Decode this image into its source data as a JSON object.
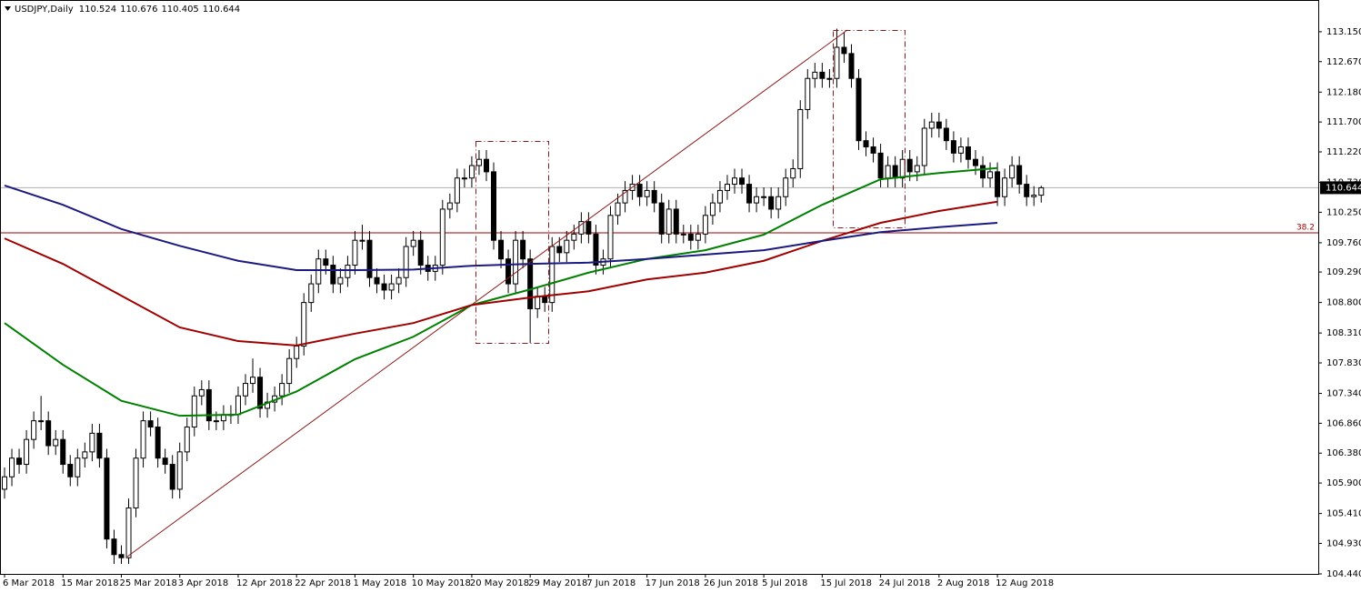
{
  "chart_data": {
    "type": "candlestick",
    "symbol": "USDJPY,Daily",
    "categories": [
      "6 Mar 2018",
      null,
      null,
      null,
      null,
      null,
      null,
      null,
      "15 Mar 2018",
      null,
      null,
      null,
      null,
      null,
      null,
      null,
      "25 Mar 2018",
      null,
      null,
      null,
      null,
      null,
      null,
      null,
      "3 Apr 2018",
      null,
      null,
      null,
      null,
      null,
      null,
      null,
      "12 Apr 2018",
      null,
      null,
      null,
      null,
      null,
      null,
      null,
      "22 Apr 2018",
      null,
      null,
      null,
      null,
      null,
      null,
      null,
      "1 May 2018",
      null,
      null,
      null,
      null,
      null,
      null,
      null,
      "10 May 2018",
      null,
      null,
      null,
      null,
      null,
      null,
      null,
      "20 May 2018",
      null,
      null,
      null,
      null,
      null,
      null,
      null,
      "29 May 2018",
      null,
      null,
      null,
      null,
      null,
      null,
      null,
      "7 Jun 2018",
      null,
      null,
      null,
      null,
      null,
      null,
      null,
      "17 Jun 2018",
      null,
      null,
      null,
      null,
      null,
      null,
      null,
      "26 Jun 2018",
      null,
      null,
      null,
      null,
      null,
      null,
      null,
      "5 Jul 2018",
      null,
      null,
      null,
      null,
      null,
      null,
      null,
      "15 Jul 2018",
      null,
      null,
      null,
      null,
      null,
      null,
      null,
      "24 Jul 2018",
      null,
      null,
      null,
      null,
      null,
      null,
      null,
      "2 Aug 2018",
      null,
      null,
      null,
      null,
      null,
      null,
      null,
      "12 Aug 2018",
      null,
      null,
      null,
      null,
      null,
      null
    ],
    "open": [
      105.8,
      106.0,
      106.3,
      106.2,
      106.6,
      106.9,
      106.9,
      106.5,
      106.6,
      106.2,
      106.0,
      106.3,
      106.4,
      106.7,
      106.3,
      105.0,
      104.75,
      104.7,
      105.5,
      106.3,
      106.9,
      106.8,
      106.3,
      106.2,
      105.8,
      106.4,
      106.8,
      107.3,
      107.4,
      106.9,
      106.9,
      107.0,
      107.0,
      107.3,
      107.5,
      107.6,
      107.1,
      107.2,
      107.3,
      107.5,
      107.9,
      108.1,
      108.8,
      109.1,
      109.5,
      109.4,
      109.1,
      109.2,
      109.4,
      109.8,
      109.8,
      109.2,
      109.1,
      109.0,
      109.1,
      109.2,
      109.7,
      109.8,
      109.4,
      109.3,
      109.4,
      110.3,
      110.4,
      110.8,
      110.8,
      111.0,
      111.1,
      110.9,
      109.8,
      109.5,
      109.1,
      109.8,
      109.5,
      108.7,
      108.9,
      108.8,
      109.7,
      109.6,
      109.8,
      109.9,
      110.1,
      109.9,
      109.4,
      109.5,
      110.2,
      110.4,
      110.6,
      110.7,
      110.5,
      110.6,
      110.4,
      109.9,
      110.3,
      109.9,
      109.9,
      109.8,
      109.9,
      110.2,
      110.4,
      110.6,
      110.7,
      110.8,
      110.7,
      110.4,
      110.5,
      110.5,
      110.3,
      110.5,
      110.8,
      110.95,
      111.9,
      112.4,
      112.5,
      112.4,
      112.4,
      112.9,
      112.8,
      112.4,
      111.4,
      111.3,
      111.2,
      110.8,
      111.0,
      110.8,
      111.1,
      110.9,
      111.0,
      111.6,
      111.7,
      111.6,
      111.4,
      111.2,
      111.3,
      111.1,
      111.0,
      110.8,
      110.9,
      110.5,
      110.8,
      111.0,
      110.7,
      110.5,
      110.524
    ],
    "high": [
      106.15,
      106.45,
      106.45,
      106.75,
      107.05,
      107.3,
      107.05,
      106.75,
      106.75,
      106.35,
      106.45,
      106.55,
      106.85,
      106.85,
      106.45,
      105.15,
      104.9,
      105.65,
      106.45,
      107.05,
      107.05,
      106.95,
      106.45,
      106.35,
      106.55,
      106.95,
      107.45,
      107.55,
      107.55,
      107.05,
      107.15,
      107.15,
      107.45,
      107.65,
      107.9,
      107.75,
      107.35,
      107.45,
      107.65,
      108.05,
      108.25,
      108.95,
      109.25,
      109.65,
      109.65,
      109.55,
      109.35,
      109.55,
      109.95,
      110.05,
      109.95,
      109.35,
      109.25,
      109.25,
      109.35,
      109.85,
      109.95,
      109.95,
      109.55,
      109.55,
      110.45,
      110.55,
      110.95,
      110.95,
      111.15,
      111.25,
      111.25,
      111.05,
      109.95,
      109.65,
      109.95,
      109.95,
      109.65,
      109.05,
      109.05,
      109.85,
      109.85,
      109.95,
      110.05,
      110.25,
      110.25,
      110.05,
      109.65,
      110.35,
      110.55,
      110.75,
      110.85,
      110.85,
      110.75,
      110.75,
      110.55,
      110.45,
      110.45,
      110.05,
      110.05,
      110.05,
      110.35,
      110.55,
      110.75,
      110.85,
      110.95,
      110.95,
      110.85,
      110.65,
      110.65,
      110.65,
      110.65,
      110.95,
      111.1,
      112.05,
      112.55,
      112.65,
      112.65,
      112.55,
      113.2,
      113.15,
      112.95,
      112.55,
      111.55,
      111.45,
      111.35,
      111.15,
      111.15,
      111.25,
      111.25,
      111.15,
      111.75,
      111.85,
      111.85,
      111.75,
      111.55,
      111.45,
      111.45,
      111.25,
      111.15,
      111.05,
      111.05,
      110.95,
      111.15,
      111.15,
      110.85,
      110.67,
      110.676
    ],
    "low": [
      105.65,
      105.85,
      106.05,
      106.05,
      106.45,
      106.75,
      106.35,
      106.35,
      106.05,
      105.85,
      105.85,
      106.15,
      106.25,
      106.15,
      104.85,
      104.6,
      104.6,
      104.6,
      105.35,
      106.15,
      106.65,
      106.15,
      106.05,
      105.65,
      105.65,
      106.25,
      106.65,
      107.15,
      106.75,
      106.75,
      106.75,
      106.85,
      106.85,
      107.15,
      107.35,
      106.95,
      106.95,
      107.05,
      107.15,
      107.35,
      107.75,
      107.95,
      108.65,
      108.95,
      109.25,
      108.95,
      108.95,
      109.05,
      109.25,
      109.65,
      109.05,
      108.95,
      108.85,
      108.85,
      108.95,
      109.05,
      109.55,
      109.25,
      109.15,
      109.15,
      109.25,
      110.15,
      110.25,
      110.65,
      110.65,
      110.85,
      110.75,
      109.65,
      109.35,
      108.95,
      108.95,
      109.35,
      108.15,
      108.55,
      108.65,
      108.65,
      109.45,
      109.45,
      109.65,
      109.75,
      109.75,
      109.25,
      109.25,
      109.35,
      110.05,
      110.25,
      110.45,
      110.35,
      110.35,
      110.25,
      109.75,
      109.75,
      109.75,
      109.75,
      109.65,
      109.65,
      109.75,
      110.05,
      110.25,
      110.45,
      110.55,
      110.55,
      110.25,
      110.25,
      110.35,
      110.15,
      110.15,
      110.35,
      110.65,
      110.8,
      111.75,
      112.25,
      112.25,
      112.25,
      112.25,
      112.65,
      112.25,
      111.25,
      111.15,
      111.05,
      110.65,
      110.65,
      110.65,
      110.65,
      110.75,
      110.75,
      110.85,
      111.45,
      111.45,
      111.25,
      111.05,
      111.05,
      110.95,
      110.85,
      110.65,
      110.65,
      110.35,
      110.35,
      110.65,
      110.55,
      110.35,
      110.35,
      110.405
    ],
    "close": [
      106.0,
      106.3,
      106.2,
      106.6,
      106.9,
      106.9,
      106.5,
      106.6,
      106.2,
      106.0,
      106.3,
      106.4,
      106.7,
      106.3,
      105.0,
      104.75,
      104.7,
      105.5,
      106.3,
      106.9,
      106.8,
      106.3,
      106.2,
      105.8,
      106.4,
      106.8,
      107.3,
      107.4,
      106.9,
      106.9,
      107.0,
      107.0,
      107.3,
      107.5,
      107.6,
      107.1,
      107.2,
      107.3,
      107.5,
      107.9,
      108.1,
      108.8,
      109.1,
      109.5,
      109.4,
      109.1,
      109.2,
      109.4,
      109.8,
      109.8,
      109.2,
      109.1,
      109.0,
      109.1,
      109.2,
      109.7,
      109.8,
      109.4,
      109.3,
      109.4,
      110.3,
      110.4,
      110.8,
      110.8,
      111.0,
      111.1,
      110.9,
      109.8,
      109.5,
      109.1,
      109.8,
      109.5,
      108.7,
      108.9,
      108.8,
      109.7,
      109.6,
      109.8,
      109.9,
      110.1,
      109.9,
      109.4,
      109.5,
      110.2,
      110.4,
      110.6,
      110.7,
      110.5,
      110.6,
      110.4,
      109.9,
      110.3,
      109.9,
      109.9,
      109.8,
      109.9,
      110.2,
      110.4,
      110.6,
      110.7,
      110.8,
      110.7,
      110.4,
      110.5,
      110.5,
      110.3,
      110.5,
      110.8,
      110.95,
      111.9,
      112.4,
      112.5,
      112.4,
      112.4,
      112.9,
      112.8,
      112.4,
      111.4,
      111.3,
      111.2,
      110.8,
      111.0,
      110.8,
      111.1,
      110.9,
      111.0,
      111.6,
      111.7,
      111.6,
      111.4,
      111.2,
      111.3,
      111.1,
      111.0,
      110.8,
      110.9,
      110.5,
      110.8,
      111.0,
      110.7,
      110.5,
      110.524,
      110.644
    ],
    "bull_color": "#ffffff",
    "bear_color": "#000000",
    "series": [
      {
        "color": "#008000",
        "x": [
          "6 Mar 2018",
          "15 Mar 2018",
          "25 Mar 2018",
          "3 Apr 2018",
          "12 Apr 2018",
          "22 Apr 2018",
          "1 May 2018",
          "10 May 2018",
          "20 May 2018",
          "29 May 2018",
          "7 Jun 2018",
          "17 Jun 2018",
          "26 Jun 2018",
          "5 Jul 2018",
          "15 Jul 2018",
          "24 Jul 2018",
          "2 Aug 2018",
          "12 Aug 2018"
        ],
        "values": [
          108.47,
          107.8,
          107.22,
          106.98,
          107.0,
          107.37,
          107.89,
          108.25,
          108.76,
          109.01,
          109.28,
          109.5,
          109.64,
          109.89,
          110.37,
          110.78,
          110.88,
          110.96
        ]
      },
      {
        "color": "#a00000",
        "x": [
          "6 Mar 2018",
          "15 Mar 2018",
          "25 Mar 2018",
          "3 Apr 2018",
          "12 Apr 2018",
          "22 Apr 2018",
          "1 May 2018",
          "10 May 2018",
          "20 May 2018",
          "29 May 2018",
          "7 Jun 2018",
          "17 Jun 2018",
          "26 Jun 2018",
          "5 Jul 2018",
          "15 Jul 2018",
          "24 Jul 2018",
          "2 Aug 2018",
          "12 Aug 2018"
        ],
        "values": [
          109.83,
          109.42,
          108.91,
          108.4,
          108.18,
          108.11,
          108.3,
          108.47,
          108.76,
          108.88,
          108.98,
          109.17,
          109.28,
          109.47,
          109.79,
          110.08,
          110.27,
          110.42
        ]
      },
      {
        "color": "#1a1a80",
        "x": [
          "6 Mar 2018",
          "15 Mar 2018",
          "25 Mar 2018",
          "3 Apr 2018",
          "12 Apr 2018",
          "22 Apr 2018",
          "1 May 2018",
          "10 May 2018",
          "20 May 2018",
          "29 May 2018",
          "7 Jun 2018",
          "17 Jun 2018",
          "26 Jun 2018",
          "5 Jul 2018",
          "15 Jul 2018",
          "24 Jul 2018",
          "2 Aug 2018",
          "12 Aug 2018"
        ],
        "values": [
          110.68,
          110.37,
          109.98,
          109.71,
          109.47,
          109.32,
          109.32,
          109.33,
          109.39,
          109.42,
          109.44,
          109.5,
          109.57,
          109.64,
          109.79,
          109.93,
          110.01,
          110.08
        ]
      }
    ],
    "fib_level": {
      "label": "38.2",
      "price": 109.92,
      "color": "#a00000"
    },
    "ylim": [
      104.44,
      113.66
    ],
    "yticks": [
      {
        "value": 104.44,
        "label": "104.440"
      },
      {
        "value": 104.93,
        "label": "104.930"
      },
      {
        "value": 105.41,
        "label": "105.410"
      },
      {
        "value": 105.9,
        "label": "105.900"
      },
      {
        "value": 106.38,
        "label": "106.380"
      },
      {
        "value": 106.86,
        "label": "106.860"
      },
      {
        "value": 107.34,
        "label": "107.340"
      },
      {
        "value": 107.83,
        "label": "107.830"
      },
      {
        "value": 108.31,
        "label": "108.310"
      },
      {
        "value": 108.8,
        "label": "108.800"
      },
      {
        "value": 109.29,
        "label": "109.290"
      },
      {
        "value": 109.76,
        "label": "109.760"
      },
      {
        "value": 110.25,
        "label": "110.250"
      },
      {
        "value": 110.73,
        "label": "110.730"
      },
      {
        "value": 111.22,
        "label": "111.220"
      },
      {
        "value": 111.7,
        "label": "111.700"
      },
      {
        "value": 112.18,
        "label": "112.180"
      },
      {
        "value": 112.67,
        "label": "112.670"
      },
      {
        "value": 113.15,
        "label": "113.150"
      }
    ]
  }
}
